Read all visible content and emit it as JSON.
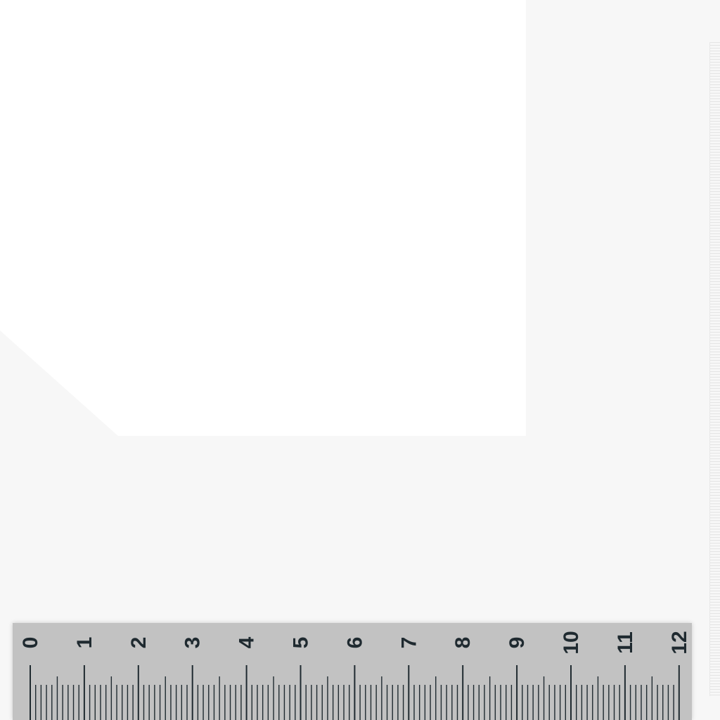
{
  "ruler": {
    "labels": [
      "0",
      "1",
      "2",
      "3",
      "4",
      "5",
      "6",
      "7",
      "8",
      "9",
      "10",
      "11",
      "12"
    ],
    "subdivisions_per_unit": 10,
    "color": "#c2c2c2",
    "ink": "#1f2a30"
  }
}
